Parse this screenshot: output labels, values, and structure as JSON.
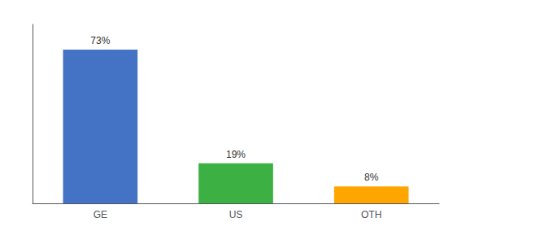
{
  "chart_data": {
    "type": "bar",
    "categories": [
      "GE",
      "US",
      "OTH"
    ],
    "values": [
      73,
      19,
      8
    ],
    "value_labels": [
      "73%",
      "19%",
      "8%"
    ],
    "colors": [
      "#4472c4",
      "#3cb043",
      "#ffa500"
    ],
    "ylim": [
      0,
      85
    ],
    "grid": false,
    "tick_labels": "x",
    "data_labels": true
  }
}
